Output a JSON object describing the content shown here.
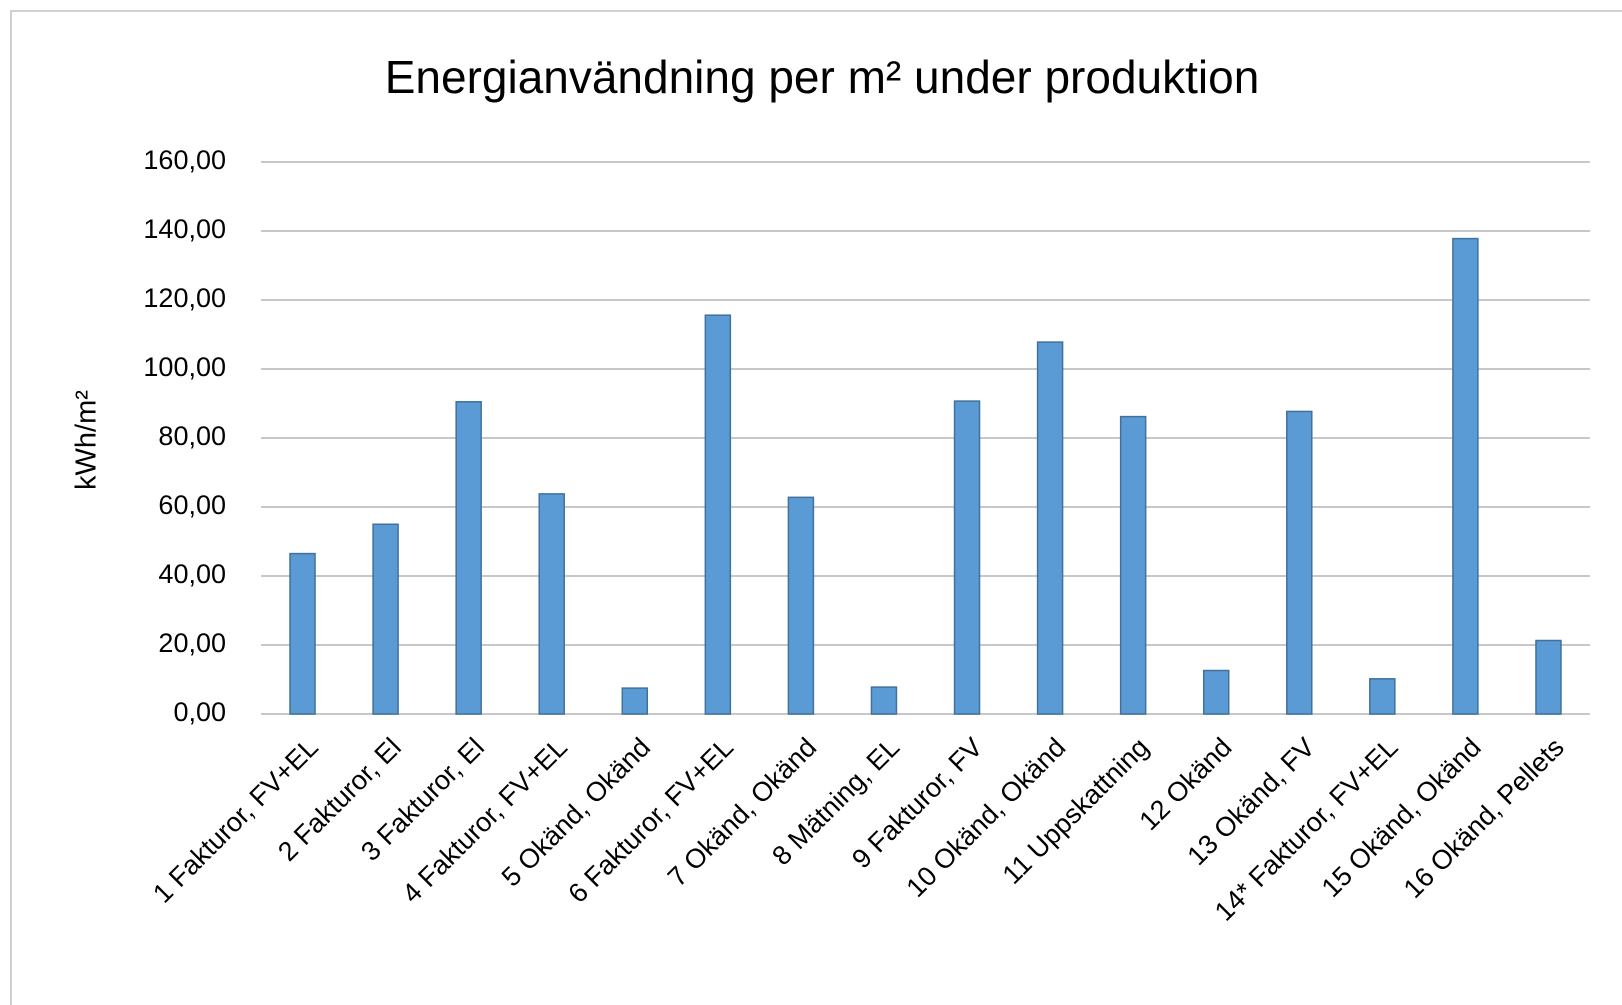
{
  "chart_data": {
    "type": "bar",
    "title": "Energianvändning per m² under produktion",
    "y_label": "kWh/m²",
    "categories": [
      "1 Fakturor, FV+EL",
      "2 Fakturor, El",
      "3 Fakturor, El",
      "4 Fakturor, FV+EL",
      "5 Okänd, Okänd",
      "6 Fakturor, FV+EL",
      "7 Okänd, Okänd",
      "8 Mätning, EL",
      "9 Fakturor, FV",
      "10 Okänd, Okänd",
      "11 Uppskattning",
      "12 Okänd",
      "13 Okänd, FV",
      "14* Fakturor, FV+EL",
      "15 Okänd, Okänd",
      "16 Okänd, Pellets"
    ],
    "values": [
      46.5,
      55,
      90.5,
      63.8,
      7.5,
      115.6,
      62.8,
      7.8,
      90.7,
      107.8,
      86.2,
      12.6,
      87.7,
      10.2,
      137.8,
      21.3
    ],
    "color": "#5b9bd5",
    "ylim": [
      0,
      160
    ],
    "yticks": [
      {
        "value": 0,
        "label": "0,00"
      },
      {
        "value": 20,
        "label": "20,00"
      },
      {
        "value": 40,
        "label": "40,00"
      },
      {
        "value": 60,
        "label": "60,00"
      },
      {
        "value": 80,
        "label": "80,00"
      },
      {
        "value": 100,
        "label": "100,00"
      },
      {
        "value": 120,
        "label": "120,00"
      },
      {
        "value": 140,
        "label": "140,00"
      },
      {
        "value": 160,
        "label": "160,00"
      }
    ],
    "grid": true
  }
}
